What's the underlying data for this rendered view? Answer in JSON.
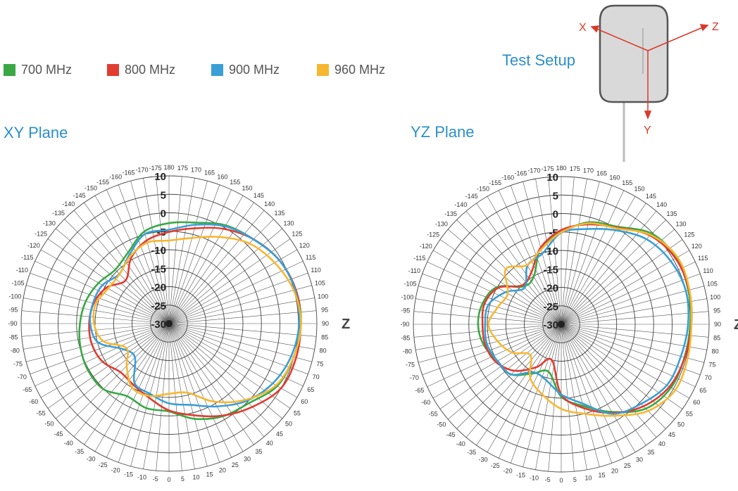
{
  "legend": [
    {
      "label": "700 MHz",
      "color": "#3aa845"
    },
    {
      "label": "800 MHz",
      "color": "#e03c31"
    },
    {
      "label": "900 MHz",
      "color": "#3a9fd6"
    },
    {
      "label": "960 MHz",
      "color": "#f7b731"
    }
  ],
  "test_setup": {
    "title": "Test Setup",
    "axes": {
      "x": "X",
      "y": "Y",
      "z": "Z"
    },
    "axis_color": "#d93a2b"
  },
  "chart_data": [
    {
      "type": "polar-line",
      "title": "XY Plane",
      "axis_label": "Z",
      "radial_ticks": [
        10,
        5,
        0,
        -5,
        -10,
        -15,
        -20,
        -25,
        -30
      ],
      "radial_range": [
        -30,
        10
      ],
      "angular_tick_step": 5,
      "angular_zero": "bottom",
      "grid": true,
      "angles": [
        -180,
        -165,
        -150,
        -135,
        -120,
        -105,
        -90,
        -75,
        -60,
        -45,
        -30,
        -15,
        0,
        15,
        30,
        45,
        60,
        75,
        90,
        105,
        120,
        135,
        150,
        165
      ],
      "series": [
        {
          "name": "700 MHz",
          "color": "#3aa845",
          "values": [
            -2.8,
            -4.2,
            -7.8,
            -9.4,
            -8,
            -6.7,
            -5.9,
            -5.2,
            -4.7,
            -4.9,
            -7.3,
            -6.3,
            -6.2,
            -3.3,
            -1,
            0.5,
            3.8,
            4.9,
            5.7,
            5.5,
            4.4,
            2.3,
            0.7,
            -1.7
          ]
        },
        {
          "name": "800 MHz",
          "color": "#e03c31",
          "values": [
            -5.2,
            -6.7,
            -9.5,
            -13.4,
            -10.5,
            -8.9,
            -8.4,
            -8.4,
            -9.3,
            -11.4,
            -10.8,
            -9.2,
            -6.5,
            -4.3,
            -1.2,
            1.9,
            5,
            5.6,
            5.6,
            5.5,
            4.4,
            2.3,
            -0.4,
            -3.3
          ]
        },
        {
          "name": "900 MHz",
          "color": "#3a9fd6",
          "values": [
            -4.6,
            -4.9,
            -8.5,
            -11,
            -9.2,
            -8.7,
            -8.7,
            -10.2,
            -16,
            -17,
            -11.4,
            -10.3,
            -8.4,
            -7.2,
            -4.1,
            -0.4,
            2.4,
            4.2,
            5.2,
            5.3,
            4.4,
            2.3,
            0.4,
            -2.3
          ]
        },
        {
          "name": "960 MHz",
          "color": "#f7b731",
          "values": [
            -7.5,
            -7.3,
            -9,
            -11.1,
            -11,
            -9.5,
            -9.7,
            -11.6,
            -16.7,
            -13.8,
            -10,
            -9.7,
            -11,
            -10.6,
            -5.6,
            -0.8,
            3.4,
            4.9,
            5.7,
            4.9,
            3,
            0.7,
            -2.9,
            -6
          ]
        }
      ]
    },
    {
      "type": "polar-line",
      "title": "YZ Plane",
      "axis_label": "Z",
      "radial_ticks": [
        10,
        5,
        0,
        -5,
        -10,
        -15,
        -20,
        -25,
        -30
      ],
      "radial_range": [
        -30,
        10
      ],
      "angular_tick_step": 5,
      "angular_zero": "bottom",
      "grid": true,
      "angles": [
        -180,
        -165,
        -150,
        -135,
        -120,
        -105,
        -90,
        -75,
        -60,
        -45,
        -30,
        -15,
        0,
        15,
        30,
        45,
        60,
        75,
        90,
        105,
        120,
        135,
        150,
        165
      ],
      "series": [
        {
          "name": "700 MHz",
          "color": "#3aa845",
          "values": [
            -5.1,
            -8.6,
            -15.1,
            -15.5,
            -9.9,
            -8,
            -7.5,
            -8.3,
            -10.1,
            -10.8,
            -14.6,
            -16.7,
            -10.4,
            -7.1,
            -2.6,
            2.3,
            4.3,
            4.5,
            4.9,
            5.6,
            5.9,
            4.7,
            0.5,
            -1.4
          ]
        },
        {
          "name": "800 MHz",
          "color": "#e03c31",
          "values": [
            -4.5,
            -8.5,
            -13.8,
            -15.1,
            -10.3,
            -8.5,
            -8.7,
            -8.7,
            -9.6,
            -12.2,
            -16.6,
            -20,
            -11,
            -6.5,
            -2.3,
            1.4,
            3.8,
            4.6,
            5.2,
            5.8,
            5.7,
            4,
            0.2,
            -2
          ]
        },
        {
          "name": "900 MHz",
          "color": "#3a9fd6",
          "values": [
            -5.2,
            -10.2,
            -11.7,
            -16,
            -12.6,
            -9.6,
            -9.4,
            -9.2,
            -10.1,
            -10.8,
            -15,
            -14.3,
            -11,
            -7.8,
            -2,
            0.5,
            3,
            3.5,
            4.3,
            4.9,
            4.2,
            2.6,
            -0.6,
            -3.3
          ]
        },
        {
          "name": "960 MHz",
          "color": "#f7b731",
          "values": [
            -5.1,
            -9,
            -11.5,
            -8.8,
            -13.3,
            -12.2,
            -10.3,
            -12.2,
            -14.7,
            -18.2,
            -13.2,
            -10.3,
            -7.1,
            -4.9,
            -1.4,
            3.2,
            5.6,
            5.4,
            5.2,
            5.9,
            6.3,
            4.2,
            0,
            -1.7
          ]
        }
      ]
    }
  ]
}
